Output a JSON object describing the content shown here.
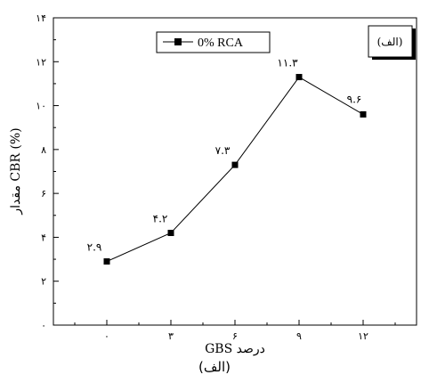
{
  "chart_data": {
    "type": "line",
    "x": [
      0,
      3,
      6,
      9,
      12
    ],
    "series": [
      {
        "name": "0% RCA",
        "values": [
          2.9,
          4.2,
          7.3,
          11.3,
          9.6
        ]
      }
    ],
    "data_labels": [
      "۲.۹",
      "۴.۲",
      "۷.۳",
      "۱۱.۳",
      "۹.۶"
    ],
    "x_tick_labels": [
      "۰",
      "۳",
      "۶",
      "۹",
      "۱۲"
    ],
    "y_ticks": [
      0,
      2,
      4,
      6,
      8,
      10,
      12,
      14
    ],
    "y_tick_labels": [
      "۰",
      "۲",
      "۴",
      "۶",
      "۸",
      "۱۰",
      "۱۲",
      "۱۴"
    ],
    "xlim": [
      -2.5,
      14.5
    ],
    "ylim": [
      0,
      14
    ],
    "xlabel": "درصد GBS",
    "ylabel": "مقدار CBR (%)",
    "panel_label": "(الف)",
    "legend_position": "top-left",
    "grid": false,
    "marker": "square",
    "line_color": "#000000"
  },
  "caption": "(الف)"
}
